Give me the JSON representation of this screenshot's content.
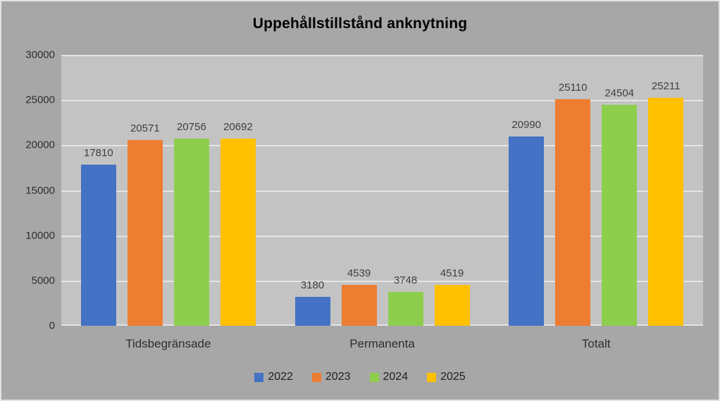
{
  "chart_data": {
    "type": "bar",
    "title": "Uppehållstillstånd anknytning",
    "categories": [
      "Tidsbegränsade",
      "Permanenta",
      "Totalt"
    ],
    "series": [
      {
        "name": "2022",
        "color": "#4472C4",
        "values": [
          17810,
          3180,
          20990
        ]
      },
      {
        "name": "2023",
        "color": "#ED7D31",
        "values": [
          20571,
          4539,
          25110
        ]
      },
      {
        "name": "2024",
        "color": "#8DCE4C",
        "values": [
          20756,
          3748,
          24504
        ]
      },
      {
        "name": "2025",
        "color": "#FFC000",
        "values": [
          20692,
          4519,
          25211
        ]
      }
    ],
    "ylim": [
      0,
      30000
    ],
    "yticks": [
      0,
      5000,
      10000,
      15000,
      20000,
      25000,
      30000
    ],
    "xlabel": "",
    "ylabel": "",
    "grid": true,
    "legend_position": "bottom",
    "data_labels": true
  },
  "colors": {
    "background": "#A7A7A7",
    "plot_background": "#C3C3C3",
    "gridline": "#E4E4E4",
    "border": "#E3E3E3",
    "title_text": "#000000",
    "data_label_text": "#3F3F3F",
    "axis_label_text": "#2E2E2E"
  }
}
